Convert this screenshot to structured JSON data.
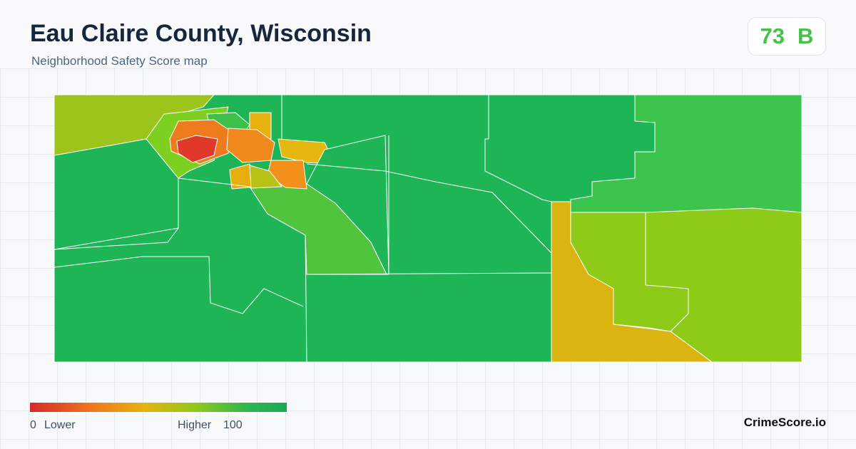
{
  "header": {
    "title": "Eau Claire County, Wisconsin",
    "subtitle": "Neighborhood Safety Score map"
  },
  "score": {
    "value": 73,
    "grade": "B"
  },
  "legend": {
    "min": 0,
    "min_label": "Lower",
    "max_label": "Higher",
    "max": 100
  },
  "footer": {
    "brand": "CrimeScore.io"
  }
}
